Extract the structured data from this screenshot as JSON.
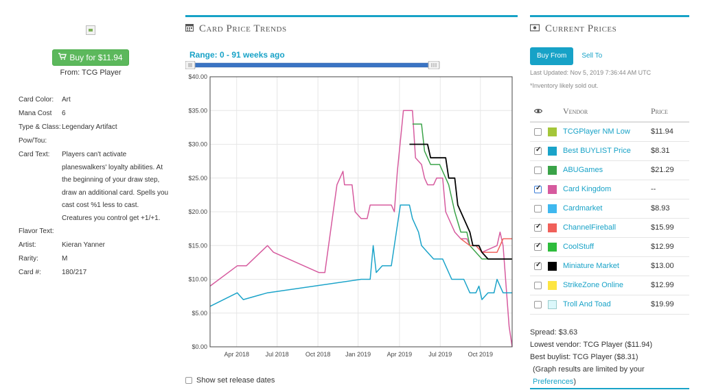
{
  "left": {
    "buy_label": "Buy for $11.94",
    "from_label": "From: TCG Player",
    "details": [
      {
        "label": "Card Color:",
        "value": "Art"
      },
      {
        "label": "Mana Cost",
        "value": "6"
      },
      {
        "label": "Type & Class:",
        "value": "Legendary Artifact"
      },
      {
        "label": "Pow/Tou:",
        "value": ""
      },
      {
        "label": "Card Text:",
        "value": "Players can't activate planeswalkers' loyalty abilities. At the beginning of your draw step, draw an additional card. Spells you cast cost %1 less to cast. Creatures you control get +1/+1."
      },
      {
        "label": "Flavor Text:",
        "value": ""
      },
      {
        "label": "Artist:",
        "value": "Kieran Yanner"
      },
      {
        "label": "Rarity:",
        "value": "M"
      },
      {
        "label": "Card #:",
        "value": "180/217"
      }
    ]
  },
  "trends": {
    "title": "Card Price Trends",
    "range_label": "Range: 0 - 91 weeks ago",
    "release_label": "Show set release dates"
  },
  "prices": {
    "title": "Current Prices",
    "tab_buy": "Buy From",
    "tab_sell": "Sell To",
    "updated": "Last Updated: Nov 5, 2019 7:36:44 AM UTC",
    "soldout": "*Inventory likely sold out.",
    "col_vendor": "Vendor",
    "col_price": "Price",
    "vendors": [
      {
        "name": "TCGPlayer NM Low",
        "price": "$11.94",
        "color": "#a4c639",
        "checked": false
      },
      {
        "name": "Best BUYLIST Price",
        "price": "$8.31",
        "color": "#1aa3c9",
        "checked": true
      },
      {
        "name": "ABUGames",
        "price": "$21.29",
        "color": "#3aa348",
        "checked": false
      },
      {
        "name": "Card Kingdom",
        "price": "--",
        "color": "#d65a9e",
        "checked": true
      },
      {
        "name": "Cardmarket",
        "price": "$8.93",
        "color": "#3fb8ef",
        "checked": false
      },
      {
        "name": "ChannelFireball",
        "price": "$15.99",
        "color": "#f0605a",
        "checked": true
      },
      {
        "name": "CoolStuff",
        "price": "$12.99",
        "color": "#2ebc3c",
        "checked": true
      },
      {
        "name": "Miniature Market",
        "price": "$13.00",
        "color": "#000000",
        "checked": true
      },
      {
        "name": "StrikeZone Online",
        "price": "$12.99",
        "color": "#fde541",
        "checked": false
      },
      {
        "name": "Troll And Toad",
        "price": "$19.99",
        "color": "#dcf8fb",
        "checked": false
      }
    ],
    "spread": "Spread: $3.63",
    "lowest": "Lowest vendor: TCG Player ($11.94)",
    "best_buylist": "Best buylist: TCG Player ($8.31)",
    "note_prefix": "(Graph results are limited by your ",
    "note_link": "Preferences",
    "note_suffix": ")"
  },
  "chart_data": {
    "type": "line",
    "ylim": [
      0,
      40
    ],
    "yticks": [
      "$40.00",
      "$35.00",
      "$30.00",
      "$25.00",
      "$20.00",
      "$15.00",
      "$10.00",
      "$5.00",
      "$0.00"
    ],
    "xticks": [
      {
        "label": "Apr 2018",
        "t": 0.088
      },
      {
        "label": "Jul 2018",
        "t": 0.222
      },
      {
        "label": "Oct 2018",
        "t": 0.357
      },
      {
        "label": "Jan 2019",
        "t": 0.49
      },
      {
        "label": "Apr 2019",
        "t": 0.627
      },
      {
        "label": "Jul 2019",
        "t": 0.762
      },
      {
        "label": "Oct 2019",
        "t": 0.895
      }
    ],
    "series": [
      {
        "color": "#d65a9e",
        "points": [
          [
            0,
            9
          ],
          [
            0.09,
            12
          ],
          [
            0.12,
            12
          ],
          [
            0.19,
            15
          ],
          [
            0.21,
            14
          ],
          [
            0.36,
            11
          ],
          [
            0.38,
            11
          ],
          [
            0.42,
            24
          ],
          [
            0.44,
            26
          ],
          [
            0.445,
            24
          ],
          [
            0.47,
            24
          ],
          [
            0.48,
            20
          ],
          [
            0.5,
            19
          ],
          [
            0.52,
            19
          ],
          [
            0.53,
            21
          ],
          [
            0.58,
            21
          ],
          [
            0.6,
            21
          ],
          [
            0.61,
            20
          ],
          [
            0.62,
            26
          ],
          [
            0.64,
            35
          ],
          [
            0.67,
            35
          ],
          [
            0.68,
            28
          ],
          [
            0.7,
            27
          ],
          [
            0.71,
            25
          ],
          [
            0.72,
            24
          ],
          [
            0.74,
            24
          ],
          [
            0.75,
            25
          ],
          [
            0.77,
            25
          ],
          [
            0.78,
            20
          ],
          [
            0.81,
            17
          ],
          [
            0.83,
            16
          ],
          [
            0.85,
            16
          ],
          [
            0.86,
            15
          ],
          [
            0.88,
            15
          ],
          [
            0.9,
            14
          ],
          [
            0.95,
            15
          ],
          [
            0.96,
            17
          ],
          [
            0.97,
            15
          ],
          [
            0.99,
            3
          ],
          [
            1.0,
            0
          ]
        ]
      },
      {
        "color": "#1aa3c9",
        "points": [
          [
            0,
            6
          ],
          [
            0.09,
            8
          ],
          [
            0.11,
            7
          ],
          [
            0.19,
            8
          ],
          [
            0.5,
            10
          ],
          [
            0.53,
            10
          ],
          [
            0.54,
            15
          ],
          [
            0.55,
            11
          ],
          [
            0.57,
            12
          ],
          [
            0.6,
            12
          ],
          [
            0.61,
            15
          ],
          [
            0.63,
            21
          ],
          [
            0.66,
            21
          ],
          [
            0.67,
            19
          ],
          [
            0.69,
            17
          ],
          [
            0.7,
            15
          ],
          [
            0.72,
            14
          ],
          [
            0.74,
            13
          ],
          [
            0.77,
            13
          ],
          [
            0.78,
            12
          ],
          [
            0.8,
            10
          ],
          [
            0.84,
            10
          ],
          [
            0.86,
            8
          ],
          [
            0.88,
            8
          ],
          [
            0.89,
            9
          ],
          [
            0.9,
            7
          ],
          [
            0.92,
            8
          ],
          [
            0.94,
            8
          ],
          [
            0.95,
            10
          ],
          [
            0.96,
            9
          ],
          [
            0.97,
            8
          ],
          [
            0.99,
            8
          ],
          [
            1.0,
            8
          ]
        ]
      },
      {
        "color": "#3aa348",
        "points": [
          [
            0.67,
            33
          ],
          [
            0.7,
            33
          ],
          [
            0.71,
            29
          ],
          [
            0.73,
            27
          ],
          [
            0.76,
            27
          ],
          [
            0.77,
            26
          ],
          [
            0.79,
            24
          ],
          [
            0.81,
            20
          ],
          [
            0.83,
            17
          ],
          [
            0.85,
            17
          ],
          [
            0.86,
            15
          ],
          [
            0.88,
            14
          ],
          [
            0.9,
            13
          ],
          [
            0.92,
            13
          ],
          [
            1.0,
            13
          ]
        ]
      },
      {
        "color": "#f0605a",
        "points": [
          [
            0.83,
            16
          ],
          [
            0.86,
            15
          ],
          [
            0.88,
            15
          ],
          [
            0.9,
            14
          ],
          [
            0.92,
            14
          ],
          [
            0.95,
            14
          ],
          [
            0.97,
            16
          ],
          [
            0.99,
            16
          ],
          [
            1.0,
            16
          ]
        ]
      },
      {
        "color": "#000000",
        "points": [
          [
            0.66,
            30
          ],
          [
            0.72,
            30
          ],
          [
            0.73,
            28
          ],
          [
            0.78,
            28
          ],
          [
            0.79,
            25
          ],
          [
            0.81,
            25
          ],
          [
            0.82,
            21
          ],
          [
            0.84,
            19
          ],
          [
            0.86,
            17
          ],
          [
            0.87,
            15
          ],
          [
            0.89,
            15
          ],
          [
            0.9,
            14
          ],
          [
            0.92,
            13
          ],
          [
            1.0,
            13
          ]
        ]
      }
    ]
  }
}
